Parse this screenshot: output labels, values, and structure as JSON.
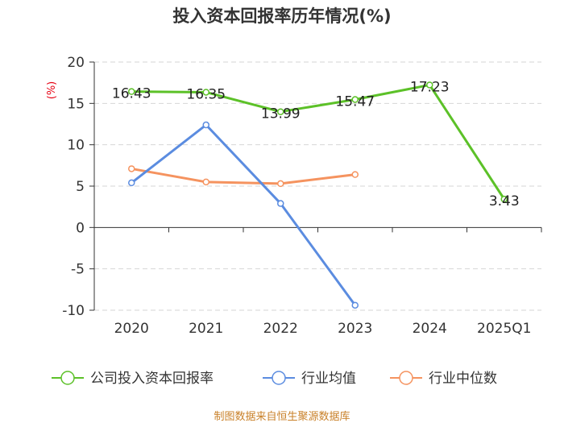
{
  "chart_data": {
    "type": "line",
    "title": "投入资本回报率历年情况(%)",
    "ylabel": "(%)",
    "xlabel": "",
    "categories": [
      "2020",
      "2021",
      "2022",
      "2023",
      "2024",
      "2025Q1"
    ],
    "ylim": [
      -10,
      20
    ],
    "yticks": [
      20,
      15,
      10,
      5,
      0,
      -5,
      -10
    ],
    "ytick_labels": [
      "20",
      "15",
      "10",
      "5",
      "0",
      "-5",
      "-10"
    ],
    "grid": true,
    "legend_position": "bottom",
    "series": [
      {
        "name": "公司投入资本回报率",
        "color": "#5cc128",
        "values": [
          16.43,
          16.35,
          13.99,
          15.47,
          17.23,
          3.43
        ],
        "labels": [
          "16.43",
          "16.35",
          "13.99",
          "15.47",
          "17.23",
          "3.43"
        ]
      },
      {
        "name": "行业均值",
        "color": "#5b8ce0",
        "values": [
          5.4,
          12.4,
          2.9,
          -9.4,
          null,
          null
        ]
      },
      {
        "name": "行业中位数",
        "color": "#f5935f",
        "values": [
          7.1,
          5.5,
          5.3,
          6.4,
          null,
          null
        ]
      }
    ],
    "source": "制图数据来自恒生聚源数据库"
  }
}
